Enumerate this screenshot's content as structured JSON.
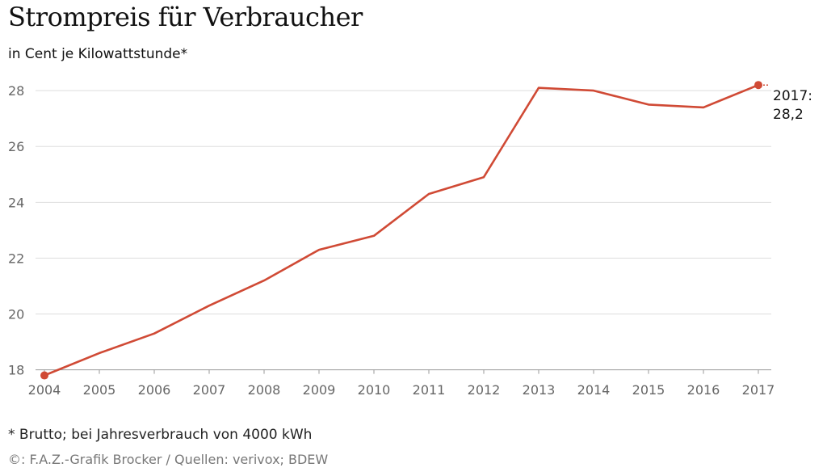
{
  "header": {
    "title": "Strompreis für Verbraucher",
    "subtitle": "in Cent je Kilowattstunde*"
  },
  "footer": {
    "footnote": "* Brutto; bei Jahresverbrauch von 4000 kWh",
    "credit": "©: F.A.Z.-Grafik Brocker / Quellen: verivox; BDEW"
  },
  "colors": {
    "line": "#d04a35",
    "grid": "#dddddd",
    "axis": "#999999"
  },
  "chart_data": {
    "type": "line",
    "title": "Strompreis für Verbraucher",
    "subtitle": "in Cent je Kilowattstunde*",
    "xlabel": "",
    "ylabel": "",
    "x": [
      2004,
      2005,
      2006,
      2007,
      2008,
      2009,
      2010,
      2011,
      2012,
      2013,
      2014,
      2015,
      2016,
      2017
    ],
    "series": [
      {
        "name": "Strompreis",
        "values": [
          17.8,
          18.6,
          19.3,
          20.3,
          21.2,
          22.3,
          22.8,
          24.3,
          24.9,
          28.1,
          28.0,
          27.5,
          27.4,
          28.2
        ]
      }
    ],
    "ylim": [
      17.7,
      28.6
    ],
    "yticks": [
      18,
      20,
      22,
      24,
      26,
      28
    ],
    "xticks": [
      "2004",
      "2005",
      "2006",
      "2007",
      "2008",
      "2009",
      "2010",
      "2011",
      "2012",
      "2013",
      "2014",
      "2015",
      "2016",
      "2017"
    ],
    "grid": true,
    "end_annotation": {
      "line1": "2017:",
      "line2": "28,2"
    }
  }
}
